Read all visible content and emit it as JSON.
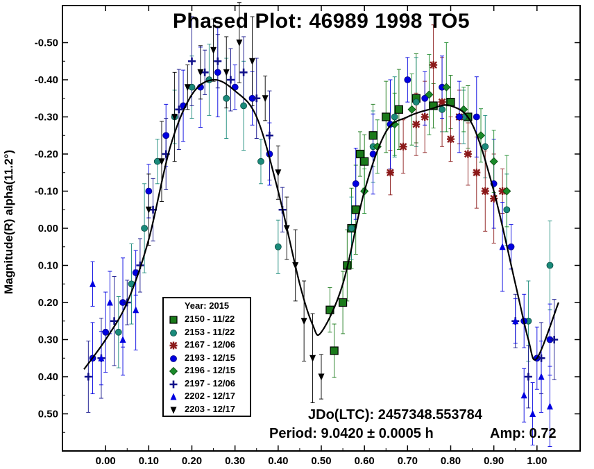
{
  "chart_data": {
    "type": "scatter",
    "title": "Phased Plot: 46989 1998 TO5",
    "xlabel": "",
    "ylabel": "Magnitude(R) alpha(11.2°)",
    "xlim": [
      -0.1,
      1.1
    ],
    "ylim": [
      0.6,
      -0.6
    ],
    "y_inverted": true,
    "x_ticks": [
      "0.00",
      "0.10",
      "0.20",
      "0.30",
      "0.40",
      "0.50",
      "0.60",
      "0.70",
      "0.80",
      "0.90",
      "1.00"
    ],
    "y_ticks": [
      "-0.50",
      "-0.40",
      "-0.30",
      "-0.20",
      "-0.10",
      "0.00",
      "0.10",
      "0.20",
      "0.30",
      "0.40",
      "0.50"
    ],
    "legend": {
      "placement": "bottom-left",
      "title": "Year: 2015",
      "entries": [
        {
          "label": "2150 - 11/22",
          "color": "#1a7a1a",
          "marker": "square"
        },
        {
          "label": "2153 - 11/22",
          "color": "#1a8a7a",
          "marker": "circle"
        },
        {
          "label": "2167 - 12/06",
          "color": "#8b1a1a",
          "marker": "x"
        },
        {
          "label": "2193 - 12/15",
          "color": "#0000e0",
          "marker": "circle"
        },
        {
          "label": "2196 - 12/15",
          "color": "#1a8a2a",
          "marker": "diamond"
        },
        {
          "label": "2197 - 12/06",
          "color": "#10108a",
          "marker": "plus"
        },
        {
          "label": "2202 - 12/17",
          "color": "#0000e0",
          "marker": "triangle-up"
        },
        {
          "label": "2203 - 12/17",
          "color": "#000000",
          "marker": "triangle-down"
        }
      ]
    },
    "fit_curve": {
      "color": "#000000",
      "x": [
        -0.05,
        0.0,
        0.05,
        0.1,
        0.15,
        0.2,
        0.25,
        0.3,
        0.35,
        0.4,
        0.45,
        0.48,
        0.5,
        0.55,
        0.6,
        0.65,
        0.7,
        0.75,
        0.8,
        0.85,
        0.9,
        0.95,
        0.98,
        1.0,
        1.05
      ],
      "y": [
        0.38,
        0.3,
        0.2,
        0.03,
        -0.22,
        -0.36,
        -0.4,
        -0.37,
        -0.3,
        -0.1,
        0.15,
        0.26,
        0.28,
        0.15,
        -0.1,
        -0.26,
        -0.3,
        -0.32,
        -0.33,
        -0.28,
        -0.1,
        0.15,
        0.3,
        0.35,
        0.2
      ]
    },
    "series": [
      {
        "name": "2150 - 11/22",
        "x": [
          0.52,
          0.53,
          0.55,
          0.56,
          0.57,
          0.58,
          0.59,
          0.6,
          0.62,
          0.65,
          0.68,
          0.72,
          0.76,
          0.8,
          0.84
        ],
        "y": [
          0.22,
          0.33,
          0.2,
          0.1,
          0.0,
          -0.05,
          -0.2,
          -0.18,
          -0.25,
          -0.3,
          -0.32,
          -0.35,
          -0.33,
          -0.34,
          -0.3
        ]
      },
      {
        "name": "2153 - 11/22",
        "x": [
          0.03,
          0.06,
          0.09,
          0.12,
          0.16,
          0.2,
          0.24,
          0.28,
          0.32,
          0.36,
          0.4,
          0.57,
          0.62,
          0.67,
          0.72,
          0.78,
          0.83,
          0.88,
          0.93,
          0.98,
          1.03
        ],
        "y": [
          0.28,
          0.15,
          0.0,
          -0.18,
          -0.3,
          -0.38,
          -0.4,
          -0.35,
          -0.33,
          -0.18,
          0.05,
          0.0,
          -0.22,
          -0.3,
          -0.34,
          -0.32,
          -0.3,
          -0.22,
          -0.05,
          0.25,
          0.1
        ]
      },
      {
        "name": "2167 - 12/06",
        "x": [
          0.66,
          0.69,
          0.72,
          0.74,
          0.76,
          0.78,
          0.8,
          0.82,
          0.84,
          0.86,
          0.88,
          0.9,
          0.92
        ],
        "y": [
          -0.15,
          -0.22,
          -0.28,
          -0.3,
          -0.44,
          -0.34,
          -0.24,
          -0.3,
          -0.2,
          -0.15,
          -0.1,
          -0.08,
          -0.1
        ]
      },
      {
        "name": "2193 - 12/15",
        "x": [
          -0.03,
          0.0,
          0.04,
          0.07,
          0.1,
          0.14,
          0.18,
          0.22,
          0.26,
          0.3,
          0.34,
          0.38,
          0.58,
          0.62,
          0.66,
          0.7,
          0.74,
          0.78,
          0.82,
          0.86,
          0.9,
          0.94,
          0.97,
          1.0,
          1.03
        ],
        "y": [
          0.35,
          0.28,
          0.2,
          0.12,
          -0.1,
          -0.25,
          -0.33,
          -0.38,
          -0.42,
          -0.38,
          -0.35,
          -0.2,
          -0.12,
          -0.2,
          -0.28,
          -0.4,
          -0.35,
          -0.38,
          -0.3,
          -0.3,
          -0.12,
          0.05,
          0.25,
          0.35,
          0.3
        ]
      },
      {
        "name": "2196 - 12/15",
        "x": [
          0.6,
          0.63,
          0.67,
          0.71,
          0.75,
          0.79,
          0.83,
          0.87,
          0.9,
          0.93
        ],
        "y": [
          -0.1,
          -0.22,
          -0.28,
          -0.32,
          -0.36,
          -0.38,
          -0.32,
          -0.25,
          -0.18,
          -0.1
        ]
      },
      {
        "name": "2197 - 12/06",
        "x": [
          -0.04,
          -0.01,
          0.02,
          0.05,
          0.08,
          0.11,
          0.14,
          0.17,
          0.2,
          0.23,
          0.26,
          0.29,
          0.32,
          0.35,
          0.38,
          0.41,
          0.95,
          0.98,
          1.01,
          1.04
        ],
        "y": [
          0.4,
          0.35,
          0.25,
          0.2,
          0.1,
          -0.05,
          -0.2,
          -0.32,
          -0.45,
          -0.42,
          -0.45,
          -0.4,
          -0.42,
          -0.35,
          -0.25,
          -0.05,
          0.25,
          0.4,
          0.35,
          0.3
        ]
      },
      {
        "name": "2202 - 12/17",
        "x": [
          -0.03,
          -0.01,
          0.01,
          0.04,
          0.07,
          0.92,
          0.95,
          0.97,
          0.99,
          1.01,
          1.03
        ],
        "y": [
          0.15,
          0.35,
          0.2,
          0.3,
          0.22,
          0.05,
          0.25,
          0.45,
          0.5,
          0.4,
          0.48
        ]
      },
      {
        "name": "2203 - 12/17",
        "x": [
          0.1,
          0.13,
          0.16,
          0.19,
          0.22,
          0.25,
          0.28,
          0.31,
          0.34,
          0.37,
          0.4,
          0.42,
          0.44,
          0.46,
          0.48,
          0.5
        ],
        "y": [
          -0.05,
          -0.18,
          -0.3,
          -0.38,
          -0.42,
          -0.48,
          -0.42,
          -0.5,
          -0.45,
          -0.35,
          -0.15,
          0.0,
          0.1,
          0.25,
          0.35,
          0.4
        ]
      }
    ]
  },
  "info": {
    "jdo": "JDo(LTC): 2457348.553784",
    "period": "Period: 9.0420 ± 0.0005 h",
    "amp": "Amp: 0.72"
  }
}
